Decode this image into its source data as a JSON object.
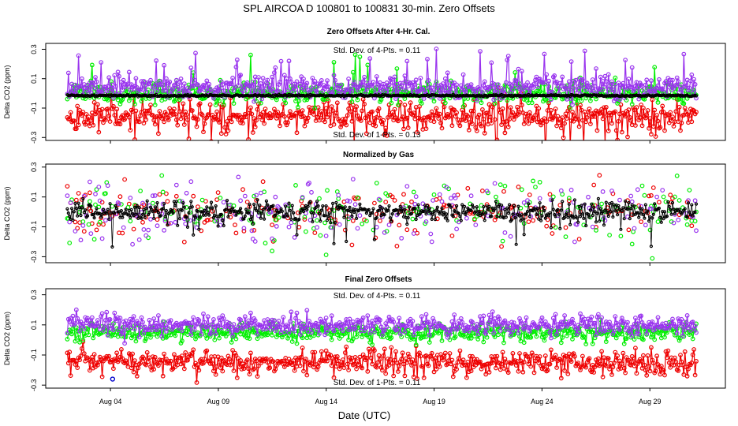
{
  "figure_title": "SPL    AIRCOA D    100801 to 100831    30-min. Zero Offsets",
  "colors": {
    "red": "#ee0000",
    "green": "#00ee00",
    "purple": "#9933ee",
    "black": "#000000",
    "blue": "#0000cc"
  },
  "chart_data": [
    {
      "type": "scatter",
      "title": "Zero Offsets After 4-Hr. Cal.",
      "ylabel": "Delta CO2 (ppm)",
      "ylim": [
        -0.32,
        0.34
      ],
      "yticks": [
        -0.3,
        -0.1,
        0.1,
        0.3
      ],
      "ytick_labels": [
        "-0.3",
        "-0.1",
        "0.1",
        "0.3"
      ],
      "xlim": [
        1.0,
        32.5
      ],
      "annotations": [
        "Std. Dev. of 4-Pts. =  0.11",
        "Std. Dev. of 1-Pts. =  0.13"
      ],
      "series": [
        {
          "name": "red",
          "mean": -0.15,
          "sd": 0.05,
          "seed": 11,
          "spikes": 0.05,
          "spike_amp": -0.12,
          "lines": true
        },
        {
          "name": "green",
          "mean": 0.0,
          "sd": 0.035,
          "seed": 23,
          "spikes": 0.03,
          "spike_amp": 0.18,
          "lines": true
        },
        {
          "name": "purple",
          "mean": 0.04,
          "sd": 0.04,
          "seed": 37,
          "spikes": 0.07,
          "spike_amp": 0.16,
          "lines": true
        },
        {
          "name": "black",
          "mean": -0.015,
          "sd": 0.003,
          "seed": 41,
          "spikes": 0.0,
          "spike_amp": 0.0,
          "lines": true
        }
      ]
    },
    {
      "type": "scatter",
      "title": "Normalized by Gas",
      "ylabel": "Delta CO2 (ppm)",
      "ylim": [
        -0.34,
        0.32
      ],
      "yticks": [
        -0.3,
        -0.1,
        0.1,
        0.3
      ],
      "ytick_labels": [
        "-0.3",
        "-0.1",
        "0.1",
        "0.3"
      ],
      "xlim": [
        1.0,
        32.5
      ],
      "annotations": [],
      "series": [
        {
          "name": "red",
          "mean": 0.0,
          "sd": 0.1,
          "seed": 53,
          "spikes": 0.0,
          "spike_amp": 0.0,
          "lines": false,
          "sparse": 0.35
        },
        {
          "name": "green",
          "mean": 0.0,
          "sd": 0.09,
          "seed": 67,
          "spikes": 0.0,
          "spike_amp": 0.0,
          "lines": false,
          "sparse": 0.3
        },
        {
          "name": "purple",
          "mean": 0.0,
          "sd": 0.1,
          "seed": 79,
          "spikes": 0.0,
          "spike_amp": 0.0,
          "lines": false,
          "sparse": 0.35
        },
        {
          "name": "black",
          "mean": 0.0,
          "sd": 0.035,
          "seed": 83,
          "spikes": 0.02,
          "spike_amp": -0.15,
          "lines": true
        }
      ]
    },
    {
      "type": "scatter",
      "title": "Final Zero Offsets",
      "ylabel": "Delta CO2 (ppm)",
      "ylim": [
        -0.32,
        0.34
      ],
      "yticks": [
        -0.3,
        -0.1,
        0.1,
        0.3
      ],
      "ytick_labels": [
        "-0.3",
        "-0.1",
        "0.1",
        "0.3"
      ],
      "xlim": [
        1.0,
        32.5
      ],
      "annotations": [
        "Std. Dev. of 4-Pts. =  0.11",
        "Std. Dev. of 1-Pts. =  0.11"
      ],
      "series": [
        {
          "name": "red",
          "mean": -0.15,
          "sd": 0.045,
          "seed": 97,
          "spikes": 0.0,
          "spike_amp": 0.0,
          "lines": true
        },
        {
          "name": "green",
          "mean": 0.05,
          "sd": 0.03,
          "seed": 101,
          "spikes": 0.0,
          "spike_amp": 0.0,
          "lines": true
        },
        {
          "name": "purple",
          "mean": 0.1,
          "sd": 0.035,
          "seed": 113,
          "spikes": 0.0,
          "spike_amp": 0.0,
          "lines": true
        }
      ],
      "extra_points": [
        {
          "series": "blue",
          "x": 4.1,
          "y": -0.26
        }
      ]
    }
  ],
  "x_axis": {
    "label": "Date (UTC)",
    "ticks": [
      4,
      9,
      14,
      19,
      24,
      29
    ],
    "tick_labels": [
      "Aug 04",
      "Aug 09",
      "Aug 14",
      "Aug 19",
      "Aug 24",
      "Aug 29"
    ]
  }
}
